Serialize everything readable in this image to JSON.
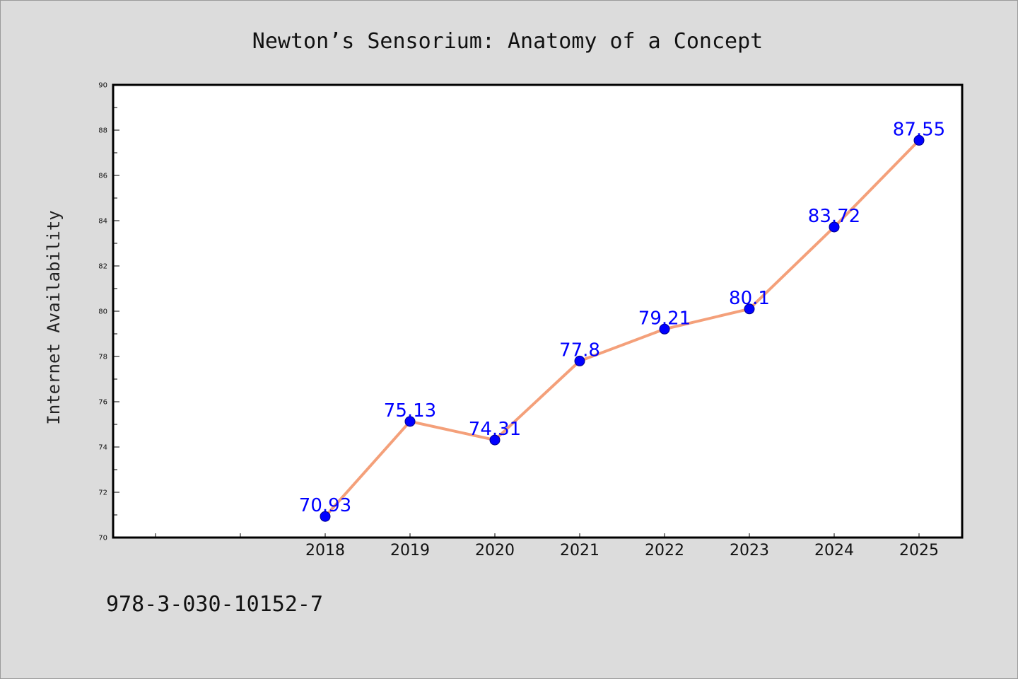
{
  "chart_data": {
    "type": "line",
    "title": "Newton’s Sensorium: Anatomy of a Concept",
    "xlabel": "",
    "ylabel": "Internet Availability",
    "categories": [
      "2018",
      "2019",
      "2020",
      "2021",
      "2022",
      "2023",
      "2024",
      "2025"
    ],
    "values": [
      70.93,
      75.13,
      74.31,
      77.8,
      79.21,
      80.1,
      83.72,
      87.55
    ],
    "data_labels": [
      "70.93",
      "75.13",
      "74.31",
      "77.8",
      "79.21",
      "80.1",
      "83.72",
      "87.55"
    ],
    "ylim": [
      70,
      90
    ],
    "yticks": [
      70,
      72,
      74,
      76,
      78,
      80,
      82,
      84,
      86,
      88,
      90
    ],
    "line_color": "#f4a07a",
    "marker_color": "#0000ff",
    "label_color": "#0000ff",
    "grid": false,
    "legend": "none"
  },
  "footer": {
    "code": "978-3-030-10152-7"
  }
}
